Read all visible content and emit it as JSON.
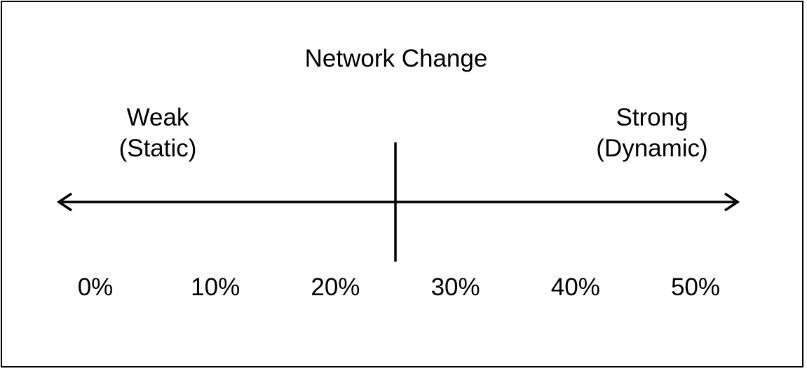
{
  "diagram": {
    "title": "Network Change",
    "left_end": {
      "line1": "Weak",
      "line2": "(Static)"
    },
    "right_end": {
      "line1": "Strong",
      "line2": "(Dynamic)"
    },
    "ticks": [
      "0%",
      "10%",
      "20%",
      "30%",
      "40%",
      "50%"
    ],
    "threshold_percent": 25,
    "scale_min_percent": 0,
    "scale_max_percent": 50,
    "line_color": "#000000"
  }
}
